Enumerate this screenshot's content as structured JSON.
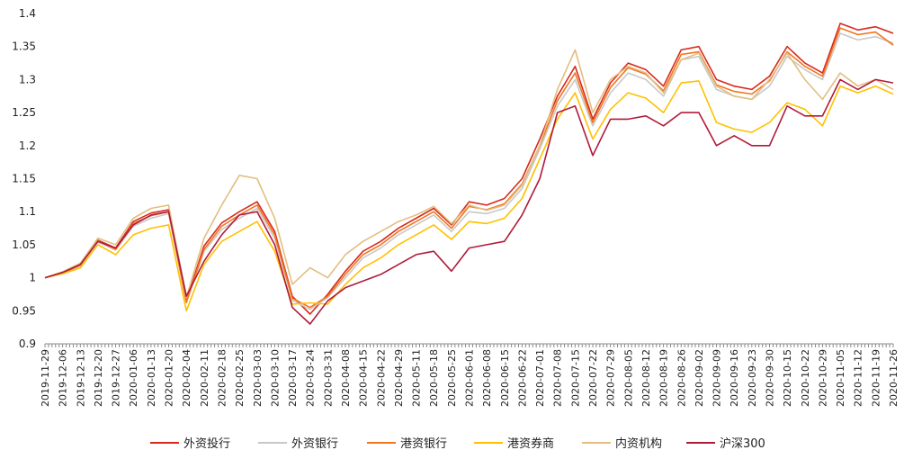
{
  "chart_data": {
    "type": "line",
    "title": "",
    "xlabel": "",
    "ylabel": "",
    "ylim": [
      0.9,
      1.4
    ],
    "yticks": [
      "0.9",
      "0.95",
      "1",
      "1.05",
      "1.1",
      "1.15",
      "1.2",
      "1.25",
      "1.3",
      "1.35",
      "1.4"
    ],
    "grid": false,
    "legend_position": "bottom",
    "x_ticks": [
      "2019-11-29",
      "2019-12-06",
      "2019-12-13",
      "2019-12-20",
      "2019-12-27",
      "2020-01-06",
      "2020-01-13",
      "2020-01-20",
      "2020-02-04",
      "2020-02-11",
      "2020-02-18",
      "2020-02-25",
      "2020-03-03",
      "2020-03-10",
      "2020-03-17",
      "2020-03-24",
      "2020-03-31",
      "2020-04-08",
      "2020-04-15",
      "2020-04-22",
      "2020-04-29",
      "2020-05-11",
      "2020-05-18",
      "2020-05-25",
      "2020-06-01",
      "2020-06-08",
      "2020-06-15",
      "2020-06-22",
      "2020-07-01",
      "2020-07-08",
      "2020-07-15",
      "2020-07-22",
      "2020-07-29",
      "2020-08-05",
      "2020-08-12",
      "2020-08-19",
      "2020-08-26",
      "2020-09-02",
      "2020-09-09",
      "2020-09-16",
      "2020-09-23",
      "2020-09-30",
      "2020-10-15",
      "2020-10-22",
      "2020-10-29",
      "2020-11-05",
      "2020-11-12",
      "2020-11-19",
      "2020-11-26"
    ],
    "series": [
      {
        "name": "外资投行",
        "color": "#d62a1e",
        "values": [
          1.0,
          1.008,
          1.02,
          1.057,
          1.045,
          1.085,
          1.098,
          1.103,
          0.965,
          1.048,
          1.083,
          1.1,
          1.115,
          1.07,
          0.972,
          0.945,
          0.975,
          1.01,
          1.04,
          1.055,
          1.075,
          1.09,
          1.105,
          1.08,
          1.115,
          1.11,
          1.12,
          1.15,
          1.21,
          1.275,
          1.32,
          1.24,
          1.295,
          1.325,
          1.315,
          1.29,
          1.345,
          1.35,
          1.3,
          1.29,
          1.285,
          1.305,
          1.35,
          1.325,
          1.31,
          1.385,
          1.375,
          1.38,
          1.37
        ]
      },
      {
        "name": "外资银行",
        "color": "#c8c8c8",
        "values": [
          1.0,
          1.007,
          1.018,
          1.054,
          1.042,
          1.078,
          1.09,
          1.097,
          0.962,
          1.04,
          1.073,
          1.09,
          1.105,
          1.06,
          0.966,
          0.952,
          0.97,
          1.0,
          1.03,
          1.045,
          1.065,
          1.08,
          1.095,
          1.07,
          1.1,
          1.097,
          1.105,
          1.135,
          1.195,
          1.26,
          1.3,
          1.23,
          1.28,
          1.31,
          1.3,
          1.275,
          1.33,
          1.335,
          1.285,
          1.275,
          1.27,
          1.29,
          1.335,
          1.315,
          1.3,
          1.37,
          1.36,
          1.365,
          1.355
        ]
      },
      {
        "name": "港资银行",
        "color": "#f2751d",
        "values": [
          1.0,
          1.007,
          1.019,
          1.056,
          1.043,
          1.082,
          1.094,
          1.1,
          0.963,
          1.043,
          1.078,
          1.095,
          1.11,
          1.065,
          0.969,
          0.955,
          0.972,
          1.005,
          1.035,
          1.05,
          1.07,
          1.085,
          1.1,
          1.075,
          1.108,
          1.103,
          1.112,
          1.142,
          1.2,
          1.268,
          1.31,
          1.235,
          1.288,
          1.318,
          1.308,
          1.283,
          1.338,
          1.342,
          1.292,
          1.282,
          1.278,
          1.298,
          1.342,
          1.32,
          1.305,
          1.378,
          1.368,
          1.372,
          1.352
        ]
      },
      {
        "name": "港资券商",
        "color": "#ffc000",
        "values": [
          1.0,
          1.006,
          1.015,
          1.05,
          1.035,
          1.065,
          1.075,
          1.08,
          0.95,
          1.02,
          1.055,
          1.07,
          1.085,
          1.04,
          0.96,
          0.962,
          0.96,
          0.99,
          1.015,
          1.03,
          1.05,
          1.065,
          1.08,
          1.058,
          1.085,
          1.082,
          1.09,
          1.12,
          1.18,
          1.24,
          1.28,
          1.21,
          1.255,
          1.28,
          1.272,
          1.25,
          1.295,
          1.298,
          1.235,
          1.225,
          1.22,
          1.235,
          1.265,
          1.255,
          1.23,
          1.29,
          1.28,
          1.29,
          1.278
        ]
      },
      {
        "name": "内资机构",
        "color": "#e3be80",
        "values": [
          1.0,
          1.009,
          1.022,
          1.06,
          1.05,
          1.09,
          1.105,
          1.11,
          0.97,
          1.06,
          1.11,
          1.155,
          1.15,
          1.09,
          0.99,
          1.015,
          1.0,
          1.035,
          1.055,
          1.07,
          1.085,
          1.095,
          1.108,
          1.082,
          1.11,
          1.102,
          1.11,
          1.14,
          1.2,
          1.285,
          1.345,
          1.25,
          1.3,
          1.32,
          1.31,
          1.28,
          1.33,
          1.34,
          1.29,
          1.275,
          1.27,
          1.3,
          1.34,
          1.3,
          1.27,
          1.31,
          1.29,
          1.3,
          1.285
        ]
      },
      {
        "name": "沪深300",
        "color": "#b01a3a",
        "values": [
          1.0,
          1.008,
          1.02,
          1.055,
          1.045,
          1.08,
          1.095,
          1.1,
          0.972,
          1.025,
          1.065,
          1.095,
          1.1,
          1.05,
          0.955,
          0.93,
          0.965,
          0.985,
          0.995,
          1.005,
          1.02,
          1.035,
          1.04,
          1.01,
          1.045,
          1.05,
          1.055,
          1.095,
          1.15,
          1.25,
          1.26,
          1.185,
          1.24,
          1.24,
          1.245,
          1.23,
          1.25,
          1.25,
          1.2,
          1.215,
          1.2,
          1.2,
          1.26,
          1.245,
          1.245,
          1.3,
          1.285,
          1.3,
          1.295
        ]
      }
    ]
  }
}
